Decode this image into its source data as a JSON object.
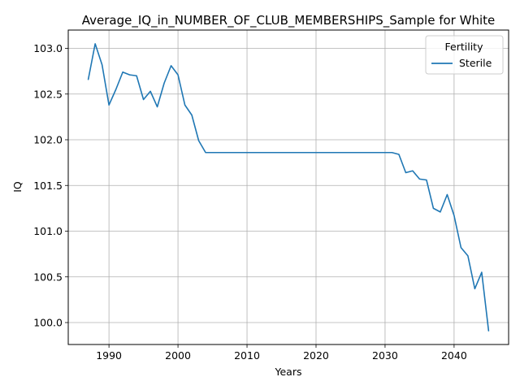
{
  "chart_data": {
    "type": "line",
    "title": "Average_IQ_in_NUMBER_OF_CLUB_MEMBERSHIPS_Sample for White",
    "xlabel": "Years",
    "ylabel": "IQ",
    "xlim": [
      1984.1,
      2047.9
    ],
    "ylim": [
      99.76,
      103.2
    ],
    "x_ticks": [
      1990,
      2000,
      2010,
      2020,
      2030,
      2040
    ],
    "x_tick_labels": [
      "1990",
      "2000",
      "2010",
      "2020",
      "2030",
      "2040"
    ],
    "y_ticks": [
      100.0,
      100.5,
      101.0,
      101.5,
      102.0,
      102.5,
      103.0
    ],
    "y_tick_labels": [
      "100.0",
      "100.5",
      "101.0",
      "101.5",
      "102.0",
      "102.5",
      "103.0"
    ],
    "grid": true,
    "legend": {
      "title": "Fertility",
      "placement": "top-right"
    },
    "series": [
      {
        "name": "Sterile",
        "color": "#1f77b4",
        "x": [
          1987,
          1988,
          1989,
          1990,
          1991,
          1992,
          1993,
          1994,
          1995,
          1996,
          1997,
          1998,
          1999,
          2000,
          2001,
          2002,
          2003,
          2004,
          2005,
          2006,
          2007,
          2008,
          2009,
          2010,
          2011,
          2012,
          2013,
          2014,
          2015,
          2016,
          2017,
          2018,
          2019,
          2020,
          2021,
          2022,
          2023,
          2024,
          2025,
          2026,
          2027,
          2028,
          2029,
          2030,
          2031,
          2032,
          2033,
          2034,
          2035,
          2036,
          2037,
          2038,
          2039,
          2040,
          2041,
          2042,
          2043,
          2044,
          2045
        ],
        "y": [
          102.66,
          103.05,
          102.82,
          102.38,
          102.55,
          102.74,
          102.71,
          102.7,
          102.44,
          102.53,
          102.36,
          102.62,
          102.81,
          102.71,
          102.38,
          102.27,
          101.99,
          101.86,
          101.86,
          101.86,
          101.86,
          101.86,
          101.86,
          101.86,
          101.86,
          101.86,
          101.86,
          101.86,
          101.86,
          101.86,
          101.86,
          101.86,
          101.86,
          101.86,
          101.86,
          101.86,
          101.86,
          101.86,
          101.86,
          101.86,
          101.86,
          101.86,
          101.86,
          101.86,
          101.86,
          101.84,
          101.64,
          101.66,
          101.57,
          101.56,
          101.25,
          101.21,
          101.4,
          101.17,
          100.82,
          100.73,
          100.37,
          100.55,
          99.91
        ]
      }
    ]
  }
}
